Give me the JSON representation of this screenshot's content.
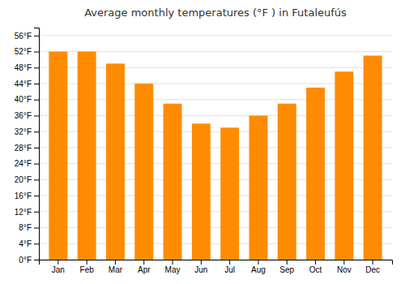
{
  "chart_data": {
    "type": "bar",
    "title": "Average monthly temperatures (°F ) in Futaleufús",
    "categories": [
      "Jan",
      "Feb",
      "Mar",
      "Apr",
      "May",
      "Jun",
      "Jul",
      "Aug",
      "Sep",
      "Oct",
      "Nov",
      "Dec"
    ],
    "values": [
      52,
      52,
      49,
      44,
      39,
      34,
      33,
      36,
      39,
      43,
      47,
      51
    ],
    "color": "#FF8C00",
    "ylim": [
      0,
      58
    ],
    "yticks": [
      {
        "value": 0,
        "label": "0°F"
      },
      {
        "value": 4,
        "label": "4°F"
      },
      {
        "value": 8,
        "label": "8°F"
      },
      {
        "value": 12,
        "label": "12°F"
      },
      {
        "value": 16,
        "label": "16°F"
      },
      {
        "value": 20,
        "label": "20°F"
      },
      {
        "value": 24,
        "label": "24°F"
      },
      {
        "value": 28,
        "label": "28°F"
      },
      {
        "value": 32,
        "label": "32°F"
      },
      {
        "value": 36,
        "label": "36°F"
      },
      {
        "value": 40,
        "label": "40°F"
      },
      {
        "value": 44,
        "label": "44°F"
      },
      {
        "value": 48,
        "label": "48°F"
      },
      {
        "value": 52,
        "label": "52°F"
      },
      {
        "value": 56,
        "label": "56°F"
      }
    ],
    "grid": true
  }
}
